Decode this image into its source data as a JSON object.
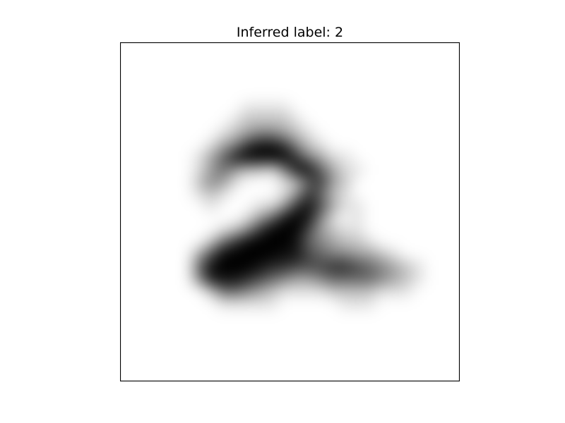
{
  "chart_data": {
    "type": "heatmap",
    "title": "Inferred label: 2",
    "xlabel": "",
    "ylabel": "",
    "ticks": false,
    "grid": false,
    "colormap": "gray_r",
    "colors": {
      "ink": "#000000",
      "background": "#ffffff",
      "frame": "#000000"
    },
    "image_size": [
      28,
      28
    ],
    "rows": [
      "............................",
      "............................",
      "............................",
      "............................",
      "............................",
      "..........1111..............",
      ".........122221.............",
      "........12344321............",
      ".......1347887421...........",
      "......1358999974311.........",
      "......13532214895311........",
      "......2431...125732.........",
      "......121....137521.........",
      ".......1...113786311........",
      "..........13589841.1........",
      "........124799963211........",
      ".......25799998543221.......",
      "......36999998865443321.....",
      "......5899987766677654321...",
      "......4888765433455554321...",
      ".......25543211112222111....",
      "........11111.....111.......",
      "............................",
      "............................",
      "............................",
      "............................",
      "............................",
      "............................"
    ]
  }
}
